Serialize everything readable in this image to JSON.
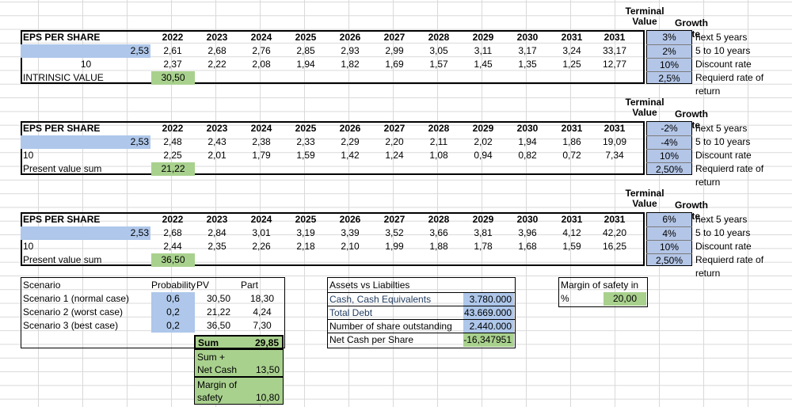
{
  "headers": {
    "terminal_top": "Terminal",
    "terminal_bottom": "Value",
    "growth_rate": "Growth rate"
  },
  "years": [
    "2022",
    "2023",
    "2024",
    "2025",
    "2026",
    "2027",
    "2028",
    "2029",
    "2030",
    "2031",
    "2031"
  ],
  "blocks": [
    {
      "title": "EPS PER SHARE",
      "eps_input": "2,53",
      "row2_label": "10",
      "row2_label_centered": true,
      "row1": [
        "2,61",
        "2,68",
        "2,76",
        "2,85",
        "2,93",
        "2,99",
        "3,05",
        "3,11",
        "3,17",
        "3,24",
        "33,17"
      ],
      "row2": [
        "2,37",
        "2,22",
        "2,08",
        "1,94",
        "1,82",
        "1,69",
        "1,57",
        "1,45",
        "1,35",
        "1,25",
        "12,77"
      ],
      "result_label": "INTRINSIC VALUE",
      "result_value": "30,50",
      "rates": [
        "3%",
        "2%",
        "10%",
        "2,5%"
      ],
      "rate_labels": [
        "next 5 years",
        "5 to 10 years",
        "Discount rate",
        "Requierd rate of return"
      ]
    },
    {
      "title": "EPS PER SHARE",
      "eps_input": "2,53",
      "row2_label": "10",
      "row2_label_centered": false,
      "row1": [
        "2,48",
        "2,43",
        "2,38",
        "2,33",
        "2,29",
        "2,20",
        "2,11",
        "2,02",
        "1,94",
        "1,86",
        "19,09"
      ],
      "row2": [
        "2,25",
        "2,01",
        "1,79",
        "1,59",
        "1,42",
        "1,24",
        "1,08",
        "0,94",
        "0,82",
        "0,72",
        "7,34"
      ],
      "result_label": "Present value sum",
      "result_value": "21,22",
      "rates": [
        "-2%",
        "-4%",
        "10%",
        "2,50%"
      ],
      "rate_labels": [
        "next 5 years",
        "5 to 10 years",
        "Discount rate",
        "Requierd rate of return"
      ]
    },
    {
      "title": "EPS PER SHARE",
      "eps_input": "2,53",
      "row2_label": "10",
      "row2_label_centered": false,
      "row1": [
        "2,68",
        "2,84",
        "3,01",
        "3,19",
        "3,39",
        "3,52",
        "3,66",
        "3,81",
        "3,96",
        "4,12",
        "42,20"
      ],
      "row2": [
        "2,44",
        "2,35",
        "2,26",
        "2,18",
        "2,10",
        "1,99",
        "1,88",
        "1,78",
        "1,68",
        "1,59",
        "16,25"
      ],
      "result_label": "Present value sum",
      "result_value": "36,50",
      "rates": [
        "6%",
        "4%",
        "10%",
        "2,50%"
      ],
      "rate_labels": [
        "next 5 years",
        "5 to 10 years",
        "Discount rate",
        "Requierd rate of return"
      ]
    }
  ],
  "scenario": {
    "headers": [
      "Scenario",
      "Probability",
      "PV",
      "Part"
    ],
    "rows": [
      {
        "name": "Scenario 1 (normal case)",
        "prob": "0,6",
        "pv": "30,50",
        "part": "18,30"
      },
      {
        "name": "Scenario 2 (worst case)",
        "prob": "0,2",
        "pv": "21,22",
        "part": "4,24"
      },
      {
        "name": "Scenario 3 (best case)",
        "prob": "0,2",
        "pv": "36,50",
        "part": "7,30"
      }
    ],
    "sum_label": "Sum",
    "sum_value": "29,85",
    "sumnet_label1": "Sum +",
    "sumnet_label2": "Net Cash",
    "sumnet_value": "13,50",
    "mos_label1": "Margin of",
    "mos_label2": "safety",
    "mos_value": "10,80"
  },
  "assets": {
    "title": "Assets vs Liabilties",
    "rows": [
      {
        "label": "Cash, Cash Equivalents",
        "value": "3.780.000"
      },
      {
        "label": "Total Debt",
        "value": "43.669.000"
      },
      {
        "label": "Number of share outstanding",
        "value": "2.440.000"
      },
      {
        "label": "Net Cash per Share",
        "value": "-16,347951"
      }
    ]
  },
  "margin": {
    "title": "Margin of safety in %",
    "value": "20,00"
  }
}
